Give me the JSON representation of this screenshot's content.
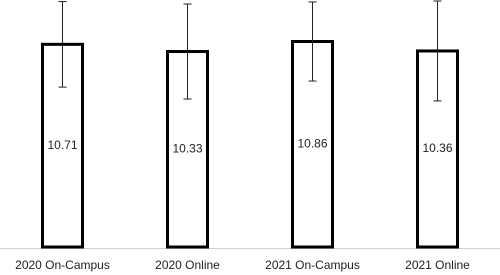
{
  "chart_data": {
    "type": "bar",
    "categories": [
      "2020 On-Campus",
      "2020 Online",
      "2021 On-Campus",
      "2021 Online"
    ],
    "values": [
      10.71,
      10.33,
      10.86,
      10.36
    ],
    "errors": [
      2.26,
      2.51,
      2.09,
      2.64
    ],
    "color": "#ffffff",
    "edge_color": "#000000",
    "ylim": [
      0,
      13
    ]
  }
}
